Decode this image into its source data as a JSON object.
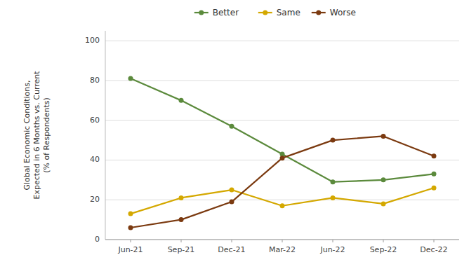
{
  "chart_data": {
    "type": "line",
    "categories": [
      "Jun-21",
      "Sep-21",
      "Dec-21",
      "Mar-22",
      "Jun-22",
      "Sep-22",
      "Dec-22"
    ],
    "series": [
      {
        "name": "Better",
        "color": "#5B8A3C",
        "marker": "o",
        "values": [
          81,
          70,
          57,
          43,
          29,
          30,
          33
        ]
      },
      {
        "name": "Same",
        "color": "#D4A800",
        "marker": "o",
        "values": [
          13,
          21,
          25,
          17,
          21,
          18,
          26
        ]
      },
      {
        "name": "Worse",
        "color": "#7B3A10",
        "marker": "o",
        "values": [
          6,
          10,
          19,
          41,
          50,
          52,
          42
        ]
      }
    ],
    "ylabel": "Global Economic Conditions,\nExpected in 6 Months vs. Current\n(% of Respondents)",
    "ylim": [
      0,
      105
    ],
    "yticks": [
      0,
      20,
      40,
      60,
      80,
      100
    ],
    "grid": true,
    "legend": "top"
  }
}
